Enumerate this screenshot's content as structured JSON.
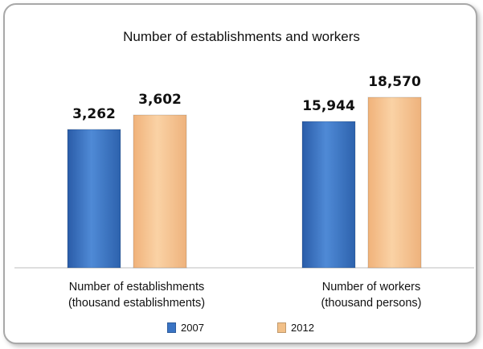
{
  "chart_data": {
    "type": "bar",
    "title": "Number of establishments and workers",
    "xlabel": "",
    "ylabel": "",
    "categories": [
      [
        "Number of establishments",
        "(thousand establishments)"
      ],
      [
        "Number of workers",
        "(thousand persons)"
      ]
    ],
    "series": [
      {
        "name": "2007",
        "color": "#3a74c4",
        "values": [
          3262,
          15944
        ],
        "labels": [
          "3,262",
          "15,944"
        ]
      },
      {
        "name": "2012",
        "color": "#f2c088",
        "values": [
          3602,
          18570
        ],
        "labels": [
          "3,602",
          "18,570"
        ]
      }
    ],
    "grid": false,
    "legend": "bottom",
    "note": "Each category is drawn on its own scale (establishments vs workers)."
  }
}
